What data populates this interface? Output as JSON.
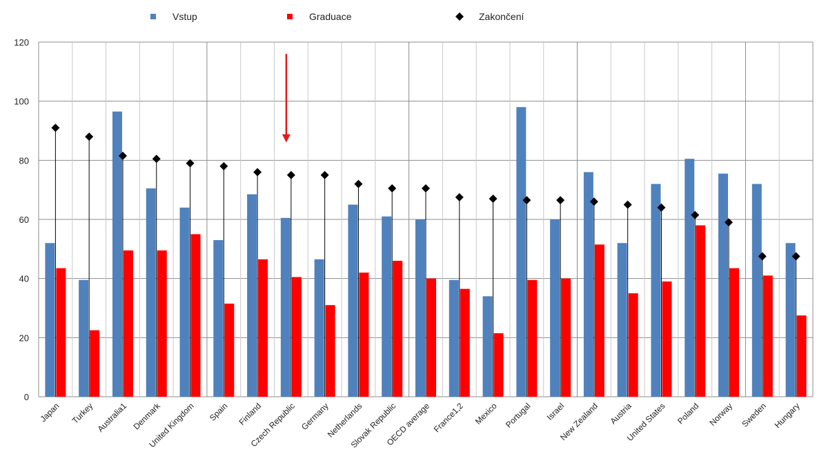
{
  "chart_data": {
    "type": "bar",
    "title": "",
    "xlabel": "",
    "ylabel": "",
    "ylim": [
      0,
      120
    ],
    "yticks": [
      0,
      20,
      40,
      60,
      80,
      100,
      120
    ],
    "grid": true,
    "legend_position": "top",
    "categories": [
      "Japan",
      "Turkey",
      "Australia1",
      "Denmark",
      "United Kingdom",
      "Spain",
      "Finland",
      "Czech Republic",
      "Germany",
      "Netherlands",
      "Slovak Republic",
      "OECD average",
      "France1,2",
      "Mexico",
      "Portugal",
      "Israel",
      "New Zealand",
      "Austria",
      "United States",
      "Poland",
      "Norway",
      "Sweden",
      "Hungary"
    ],
    "series": [
      {
        "name": "Vstup",
        "kind": "bar",
        "color": "#4F81BD",
        "values": [
          52,
          39.5,
          96.5,
          70.5,
          64,
          53,
          68.5,
          60.5,
          46.5,
          65,
          61,
          60,
          39.5,
          34,
          98,
          60,
          76,
          52,
          72,
          80.5,
          75.5,
          72,
          52
        ]
      },
      {
        "name": "Graduace",
        "kind": "bar",
        "color": "#FF0000",
        "values": [
          43.5,
          22.5,
          49.5,
          49.5,
          55,
          31.5,
          46.5,
          40.5,
          31,
          42,
          46,
          40,
          36.5,
          21.5,
          39.5,
          40,
          51.5,
          35,
          39,
          58,
          43.5,
          41,
          27.5
        ]
      },
      {
        "name": "Zakončení",
        "kind": "marker",
        "color": "#000000",
        "values": [
          91,
          88,
          81.5,
          80.5,
          79,
          78,
          76,
          75,
          75,
          72,
          70.5,
          70.5,
          67.5,
          67,
          66.5,
          66.5,
          66,
          65,
          64,
          61.5,
          59,
          47.5,
          47.5
        ]
      }
    ],
    "annotations": [
      {
        "kind": "arrow",
        "color": "#E41A1C",
        "category": "Czech Republic",
        "from_y": 116,
        "to_y": 86
      }
    ]
  }
}
